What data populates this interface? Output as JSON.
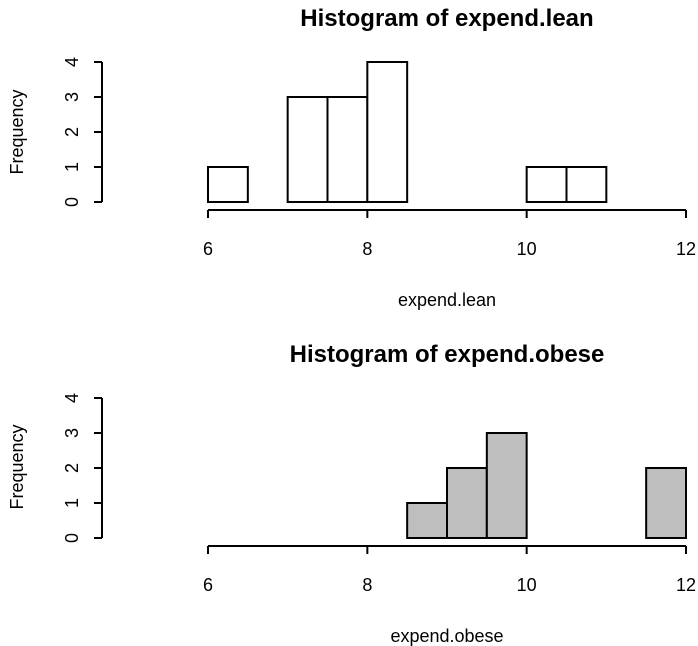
{
  "chart_data": [
    {
      "type": "bar",
      "title": "Histogram of expend.lean",
      "xlabel": "expend.lean",
      "ylabel": "Frequency",
      "xlim": [
        6,
        12
      ],
      "ylim": [
        0,
        4
      ],
      "x_ticks": [
        "6",
        "8",
        "10",
        "12"
      ],
      "y_ticks": [
        "0",
        "1",
        "2",
        "3",
        "4"
      ],
      "bar_color": "#ffffff",
      "bins": [
        {
          "x0": 6.0,
          "x1": 6.5,
          "count": 1
        },
        {
          "x0": 6.5,
          "x1": 7.0,
          "count": 0
        },
        {
          "x0": 7.0,
          "x1": 7.5,
          "count": 3
        },
        {
          "x0": 7.5,
          "x1": 8.0,
          "count": 3
        },
        {
          "x0": 8.0,
          "x1": 8.5,
          "count": 4
        },
        {
          "x0": 8.5,
          "x1": 9.0,
          "count": 0
        },
        {
          "x0": 9.0,
          "x1": 9.5,
          "count": 0
        },
        {
          "x0": 9.5,
          "x1": 10.0,
          "count": 0
        },
        {
          "x0": 10.0,
          "x1": 10.5,
          "count": 1
        },
        {
          "x0": 10.5,
          "x1": 11.0,
          "count": 1
        }
      ]
    },
    {
      "type": "bar",
      "title": "Histogram of expend.obese",
      "xlabel": "expend.obese",
      "ylabel": "Frequency",
      "xlim": [
        6,
        12
      ],
      "ylim": [
        0,
        4
      ],
      "x_ticks": [
        "6",
        "8",
        "10",
        "12"
      ],
      "y_ticks": [
        "0",
        "1",
        "2",
        "3",
        "4"
      ],
      "bar_color": "#bebebe",
      "bins": [
        {
          "x0": 8.5,
          "x1": 9.0,
          "count": 1
        },
        {
          "x0": 9.0,
          "x1": 9.5,
          "count": 2
        },
        {
          "x0": 9.5,
          "x1": 10.0,
          "count": 3
        },
        {
          "x0": 10.0,
          "x1": 10.5,
          "count": 0
        },
        {
          "x0": 10.5,
          "x1": 11.0,
          "count": 0
        },
        {
          "x0": 11.0,
          "x1": 11.5,
          "count": 0
        },
        {
          "x0": 11.5,
          "x1": 12.0,
          "count": 2
        }
      ]
    }
  ]
}
